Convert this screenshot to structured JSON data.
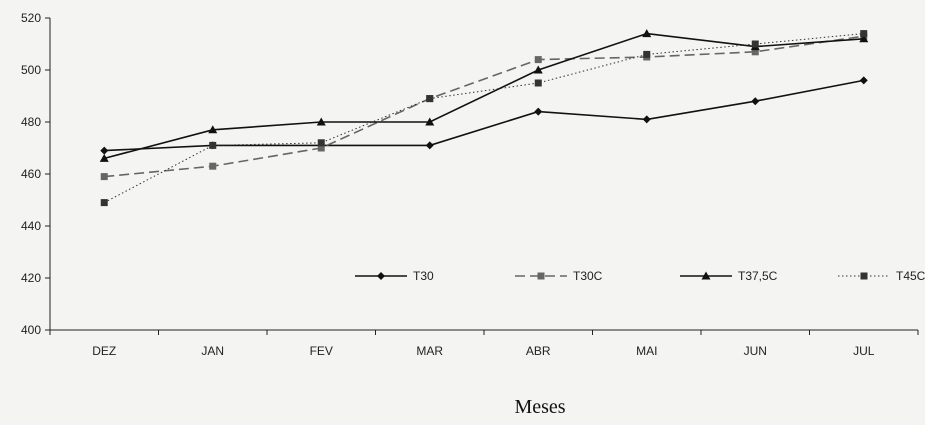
{
  "chart_data": {
    "type": "line",
    "title": "",
    "xlabel": "Meses",
    "ylabel": "",
    "categories": [
      "DEZ",
      "JAN",
      "FEV",
      "MAR",
      "ABR",
      "MAI",
      "JUN",
      "JUL"
    ],
    "ylim": [
      400,
      520
    ],
    "yticks": [
      400,
      420,
      440,
      460,
      480,
      500,
      520
    ],
    "grid": false,
    "legend_position": "bottom-right",
    "series": [
      {
        "name": "T30",
        "marker": "diamond",
        "dash": "solid",
        "color": "#111111",
        "values": [
          469,
          471,
          471,
          471,
          484,
          481,
          488,
          496
        ]
      },
      {
        "name": "T30C",
        "marker": "square",
        "dash": "dashed",
        "color": "#666666",
        "values": [
          459,
          463,
          470,
          489,
          504,
          505,
          507,
          513
        ]
      },
      {
        "name": "T37,5C",
        "marker": "triangle",
        "dash": "solid",
        "color": "#111111",
        "values": [
          466,
          477,
          480,
          480,
          500,
          514,
          509,
          512
        ]
      },
      {
        "name": "T45C",
        "marker": "square",
        "dash": "dotted",
        "color": "#333333",
        "values": [
          449,
          471,
          472,
          489,
          495,
          506,
          510,
          514
        ]
      }
    ]
  }
}
